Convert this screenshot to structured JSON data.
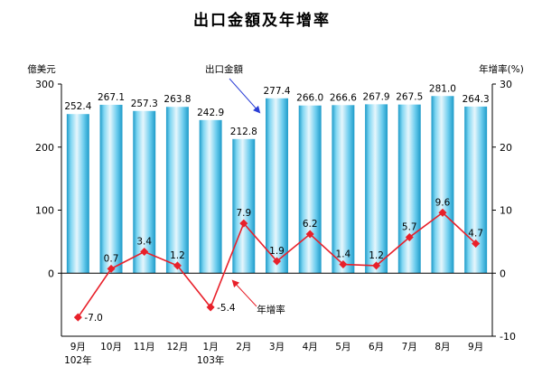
{
  "chart_data": {
    "type": "bar",
    "title": "出口金額及年增率",
    "left_axis_label": "億美元",
    "right_axis_label": "年增率(%)",
    "categories": [
      "9月",
      "10月",
      "11月",
      "12月",
      "1月",
      "2月",
      "3月",
      "4月",
      "5月",
      "6月",
      "7月",
      "8月",
      "9月"
    ],
    "year_labels": [
      {
        "index": 0,
        "text": "102年"
      },
      {
        "index": 4,
        "text": "103年"
      }
    ],
    "left_ylim": [
      -100,
      300
    ],
    "left_ticks": [
      0,
      100,
      200,
      300
    ],
    "right_ylim": [
      -10,
      30
    ],
    "right_ticks": [
      -10,
      0,
      10,
      20,
      30
    ],
    "series": [
      {
        "name": "出口金額",
        "type": "bar",
        "axis": "left",
        "values": [
          252.4,
          267.1,
          257.3,
          263.8,
          242.9,
          212.8,
          277.4,
          266.0,
          266.6,
          267.9,
          267.5,
          281.0,
          264.3
        ],
        "labels": [
          "252.4",
          "267.1",
          "257.3",
          "263.8",
          "242.9",
          "212.8",
          "277.4",
          "266.0",
          "266.6",
          "267.9",
          "267.5",
          "281.0",
          "264.3"
        ]
      },
      {
        "name": "年增率",
        "type": "line",
        "axis": "right",
        "values": [
          -7.0,
          0.7,
          3.4,
          1.2,
          -5.4,
          7.9,
          1.9,
          6.2,
          1.4,
          1.2,
          5.7,
          9.6,
          4.7
        ],
        "labels": [
          "-7.0",
          "0.7",
          "3.4",
          "1.2",
          "-5.4",
          "7.9",
          "1.9",
          "6.2",
          "1.4",
          "1.2",
          "5.7",
          "9.6",
          "4.7"
        ]
      }
    ],
    "colors": {
      "bar_light": "#e6f6fc",
      "bar_mid": "#5cc6ea",
      "bar_dark": "#1e9bc9",
      "line": "#e8202a",
      "arrow": "#2b3fd6"
    },
    "grid": false,
    "legend": "annotations with arrows"
  }
}
